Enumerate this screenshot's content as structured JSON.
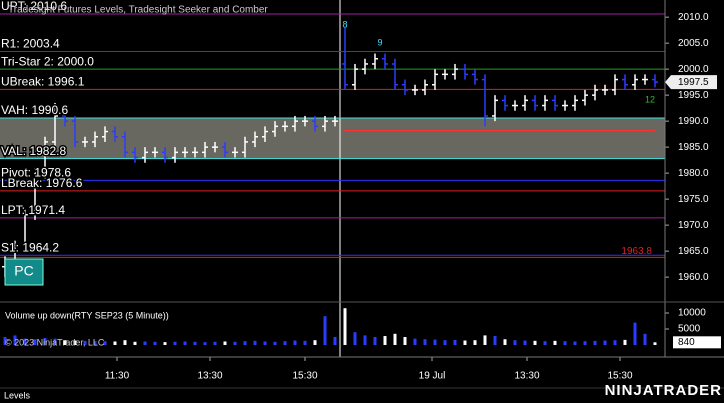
{
  "chart_data": [
    {
      "type": "ohlc",
      "title": "Tradesight Futures Levels, Tradesight Seeker and Comber",
      "up_color": "#ffffff",
      "down_color": "#2a3cff",
      "x": [
        1,
        3,
        5,
        7,
        9,
        11,
        13,
        15,
        17,
        19,
        21,
        23,
        25,
        27,
        29,
        31,
        33,
        35,
        37,
        39,
        41,
        43,
        45,
        47,
        49,
        51,
        53,
        55,
        57,
        59,
        61,
        63,
        65,
        67,
        69,
        71,
        73,
        75,
        77,
        79,
        81,
        83,
        85,
        87,
        89,
        91,
        93,
        95,
        97,
        99,
        101,
        103,
        105,
        107,
        109,
        111,
        113,
        115,
        117,
        119,
        121,
        123,
        125,
        127,
        129,
        131
      ],
      "open": [
        1962,
        1963,
        1966,
        1972,
        1980,
        1986,
        1991,
        1990,
        1986,
        1986,
        1987,
        1988,
        1987,
        1984,
        1983,
        1984,
        1984,
        1983,
        1984,
        1984,
        1984,
        1985,
        1985,
        1984,
        1984,
        1986,
        1987,
        1988,
        1989,
        1989,
        1990,
        1990,
        1989,
        1990,
        2001,
        1997,
        2000,
        2001,
        2002,
        2001,
        1997,
        1996,
        1996,
        1997,
        1999,
        1999,
        2000,
        1999,
        1998,
        1991,
        1994,
        1993,
        1993,
        1994,
        1993,
        1994,
        1993,
        1993,
        1994,
        1995,
        1996,
        1996,
        1998,
        1997,
        1998,
        1998
      ],
      "high": [
        1964,
        1967,
        1973,
        1981,
        1987,
        1993.5,
        1992,
        1991,
        1987,
        1988,
        1989,
        1989,
        1988,
        1985,
        1985,
        1985,
        1985,
        1985,
        1985,
        1985,
        1986,
        1986,
        1986,
        1985,
        1987,
        1988,
        1989,
        1990,
        1990,
        1991,
        1991,
        1991,
        1991,
        1991,
        2008,
        2001,
        2002,
        2003,
        2003,
        2002,
        1998,
        1997,
        1998,
        2000,
        2000,
        2001,
        2001,
        2000,
        1999,
        1995,
        1995,
        1994,
        1995,
        1995,
        1995,
        1995,
        1994,
        1995,
        1996,
        1997,
        1997,
        1999,
        1999,
        1999,
        1999,
        1999
      ],
      "low": [
        1960,
        1962,
        1965,
        1971,
        1979,
        1985,
        1989,
        1985,
        1985,
        1985,
        1986,
        1986,
        1983,
        1982,
        1982,
        1983,
        1982,
        1982,
        1983,
        1983,
        1983,
        1984,
        1983,
        1983,
        1983,
        1985,
        1986,
        1987,
        1988,
        1988,
        1989,
        1988,
        1988,
        1989,
        1996,
        1996,
        1999,
        2000,
        2000,
        1996,
        1995,
        1995,
        1995,
        1996,
        1998,
        1998,
        1998,
        1997,
        1989,
        1990,
        1992,
        1992,
        1992,
        1992,
        1992,
        1992,
        1992,
        1992,
        1993,
        1994,
        1995,
        1995,
        1996,
        1996,
        1997,
        1996.5
      ],
      "close": [
        1963,
        1966,
        1972,
        1980,
        1986,
        1991,
        1990,
        1986,
        1986,
        1987,
        1988,
        1987,
        1984,
        1983,
        1984,
        1984,
        1983,
        1984,
        1984,
        1984,
        1985,
        1985,
        1984,
        1984,
        1986,
        1987,
        1988,
        1989,
        1989,
        1990,
        1990,
        1989,
        1990,
        1990,
        1997,
        2000,
        2001,
        2002,
        2001,
        1997,
        1996,
        1996,
        1997,
        1999,
        1999,
        2000,
        1999,
        1998,
        1991,
        1994,
        1993,
        1993,
        1994,
        1993,
        1994,
        1993,
        1993,
        1994,
        1995,
        1996,
        1996,
        1998,
        1997,
        1998,
        1998,
        1997.5
      ],
      "xlim": [
        0,
        133
      ],
      "ylim": [
        1955.6,
        2013.3
      ],
      "yticks": [
        {
          "value": 1960,
          "label": "1960.0"
        },
        {
          "value": 1965,
          "label": "1965.0"
        },
        {
          "value": 1970,
          "label": "1970.0"
        },
        {
          "value": 1975,
          "label": "1975.0"
        },
        {
          "value": 1980,
          "label": "1980.0"
        },
        {
          "value": 1985,
          "label": "1985.0"
        },
        {
          "value": 1990,
          "label": "1990.0"
        },
        {
          "value": 1995,
          "label": "1995.0"
        },
        {
          "value": 2000,
          "label": "2000.0"
        },
        {
          "value": 2005,
          "label": "2005.0"
        },
        {
          "value": 2010,
          "label": "2010.0"
        }
      ],
      "xticks": [
        {
          "value": 23.4,
          "label": "11:30"
        },
        {
          "value": 42,
          "label": "13:30"
        },
        {
          "value": 61,
          "label": "15:30"
        },
        {
          "value": 86.4,
          "label": "19 Jul"
        },
        {
          "value": 105.4,
          "label": "13:30"
        },
        {
          "value": 124,
          "label": "15:30"
        }
      ],
      "session_break": 68,
      "last_price": {
        "value": 1997.5,
        "label": "1997.5"
      },
      "levels": [
        {
          "label": "UPT: 2010.6",
          "value": 2010.6,
          "color": "#a020a0"
        },
        {
          "label": "R1: 2003.4",
          "value": 2003.4,
          "color": "#3030ff"
        },
        {
          "label": "Tri-Star 2: 2000.0",
          "value": 2000.0,
          "color": "#20a020"
        },
        {
          "label": "UBreak: 1996.1",
          "value": 1996.1,
          "color": "#e02020"
        },
        {
          "label": "VAH: 1990.6",
          "value": 1990.6,
          "color": "#40e0e0"
        },
        {
          "label": "VAL: 1982.8",
          "value": 1982.8,
          "color": "#40e0e0"
        },
        {
          "label": "Pivot: 1978.6",
          "value": 1978.6,
          "color": "#3030ff"
        },
        {
          "label": "LBreak: 1976.6",
          "value": 1976.6,
          "color": "#e02020"
        },
        {
          "label": "LPT: 1971.4",
          "value": 1971.4,
          "color": "#a020a0"
        },
        {
          "label": "S1: 1964.2",
          "value": 1964.2,
          "color": "#3030ff"
        }
      ],
      "value_area": {
        "from": 1982.8,
        "to": 1990.6,
        "fill": "#7a7a72"
      },
      "marker_line": {
        "label": "1963.8",
        "value": 1963.8,
        "color": "#e02020"
      },
      "segment": {
        "value": 1988.2,
        "x": [
          68.6,
          131
        ],
        "color": "#ff3030"
      },
      "annotations": [
        {
          "text": "8",
          "x": 69,
          "y": 2008.5,
          "color": "#40e0ff"
        },
        {
          "text": "9",
          "x": 76,
          "y": 2005,
          "color": "#40e0ff"
        },
        {
          "text": "12",
          "x": 130,
          "y": 1994,
          "color": "#2fbf2f"
        }
      ],
      "button": "PC"
    },
    {
      "type": "bar",
      "title": "Volume up down(RTY SEP23 (5 Minute))",
      "values": [
        2500,
        3000,
        2000,
        1800,
        2200,
        2000,
        1500,
        1400,
        1300,
        1200,
        1200,
        1100,
        1500,
        1000,
        1100,
        1000,
        900,
        1000,
        1100,
        1000,
        900,
        1000,
        1100,
        1000,
        1200,
        1300,
        1100,
        1000,
        1200,
        1400,
        1300,
        1500,
        9000,
        2500,
        11500,
        4000,
        3000,
        2500,
        2800,
        3500,
        2500,
        2000,
        1800,
        1700,
        1500,
        1600,
        1400,
        1500,
        3000,
        2800,
        1800,
        1500,
        1400,
        1300,
        1200,
        1300,
        1200,
        1100,
        1200,
        1300,
        1400,
        1500,
        1600,
        7000,
        3500,
        840
      ],
      "ylim": [
        -3125,
        12500
      ],
      "yticks": [
        5000,
        10000
      ],
      "last_value": 840,
      "copyright": "© 2023 NinjaTrader, LLC"
    }
  ],
  "footer": {
    "tab": "Levels",
    "logo": "NINJATRADER"
  }
}
